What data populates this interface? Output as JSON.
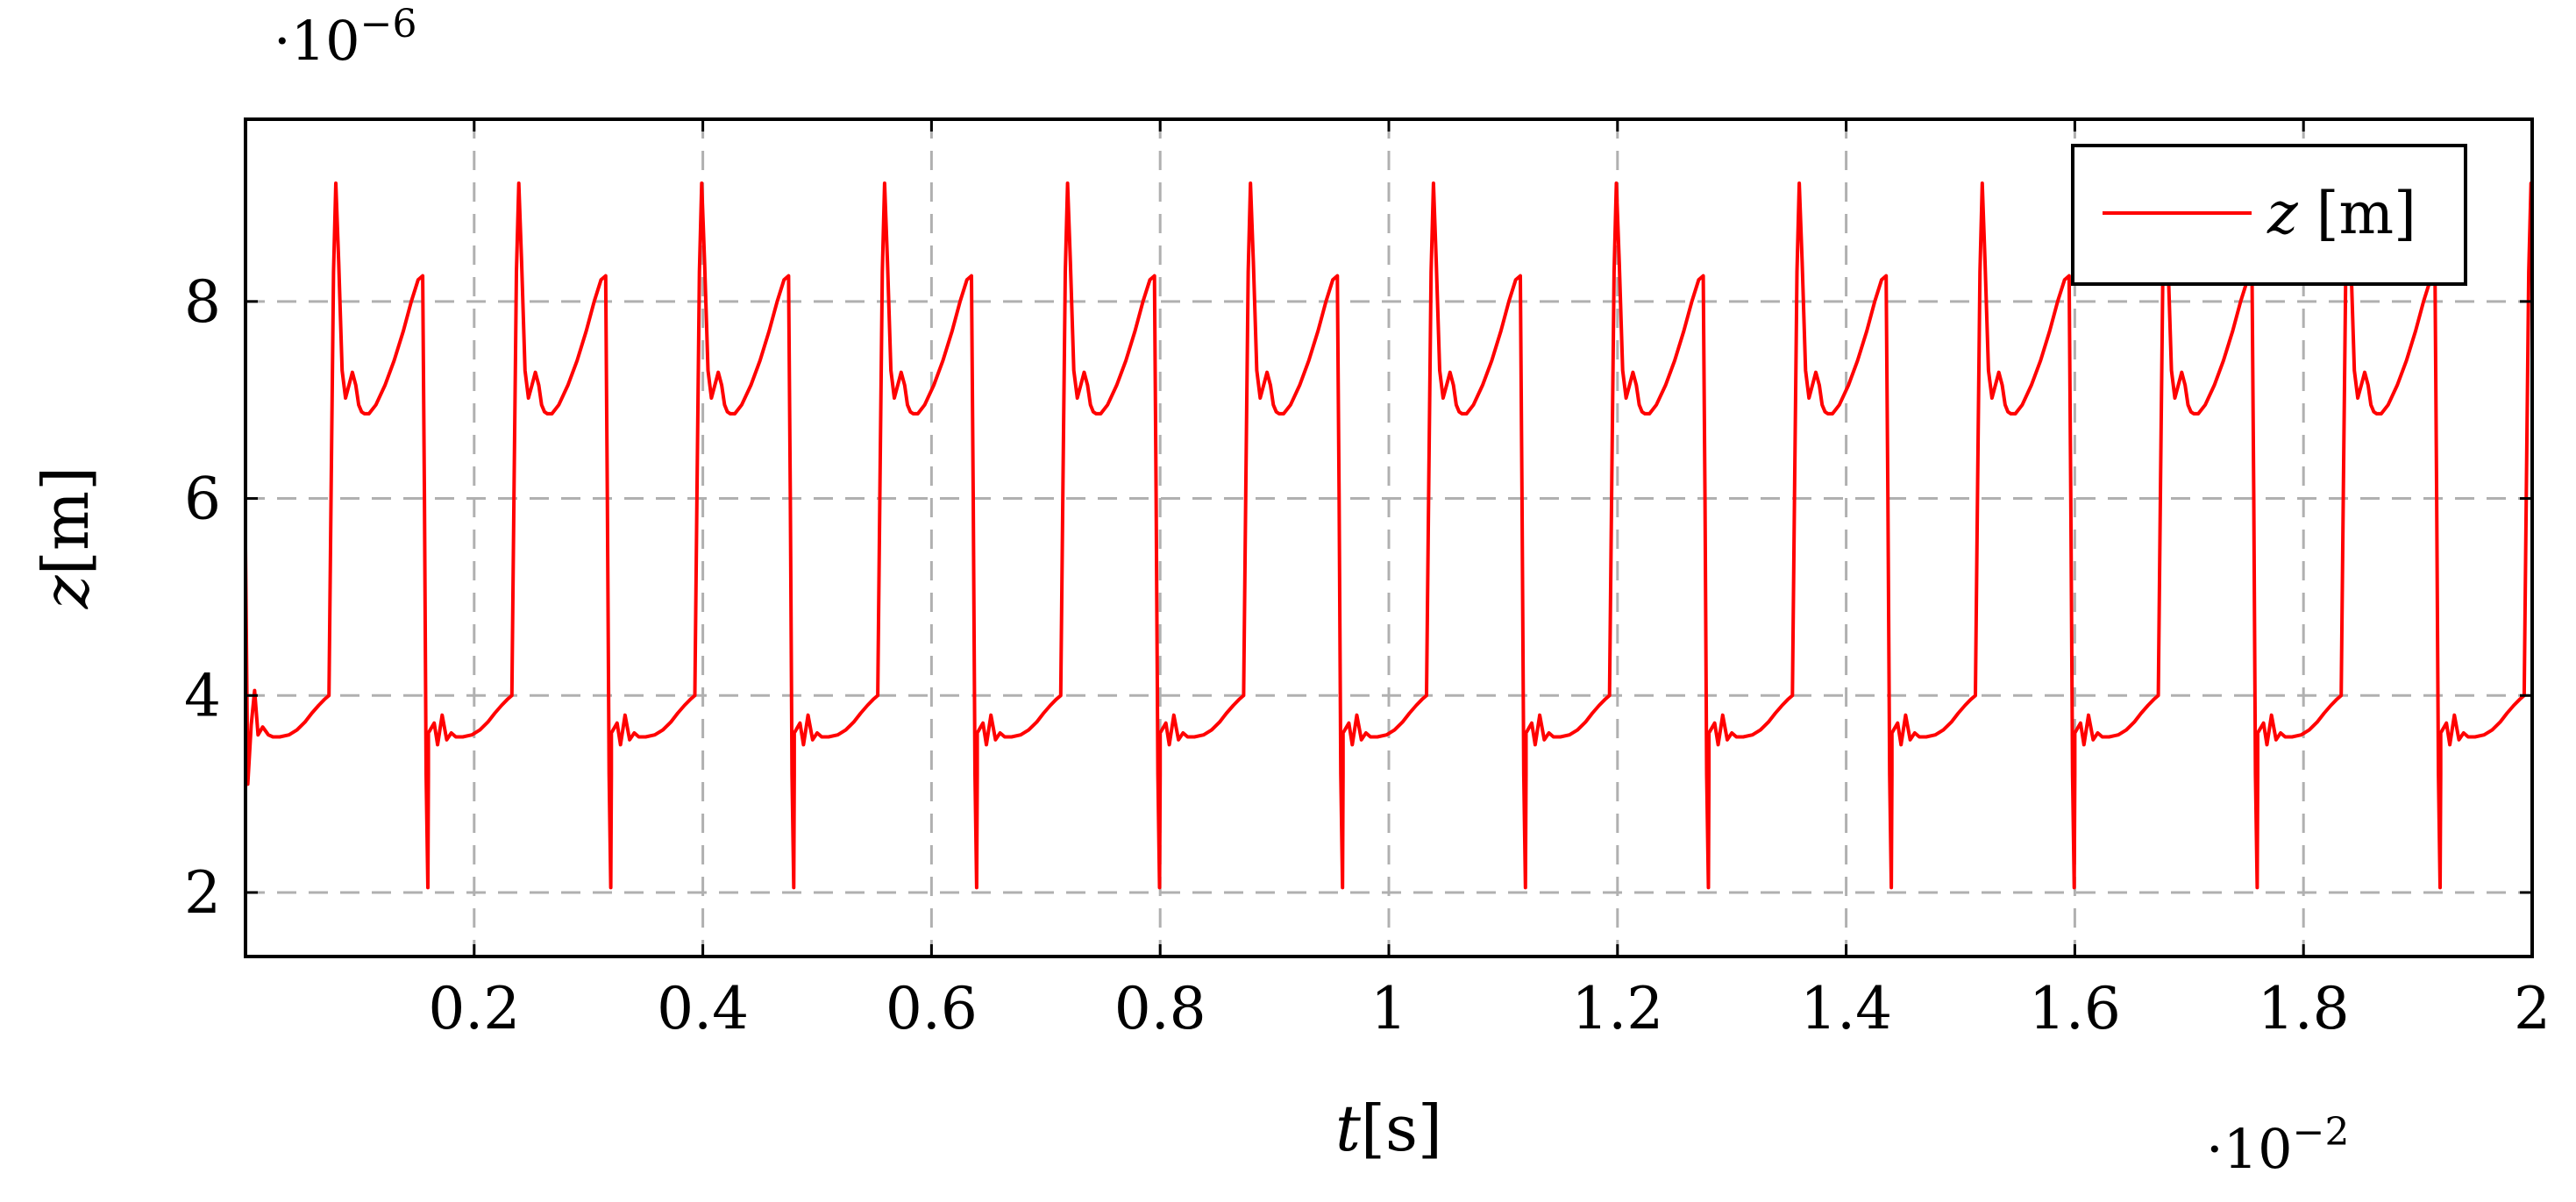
{
  "chart_data": {
    "type": "line",
    "title": "",
    "xlabel": {
      "var": "t",
      "unit": "[s]"
    },
    "ylabel": {
      "var": "z",
      "unit": "[m]"
    },
    "x_scale_label": {
      "base": "·10",
      "exp": "−2"
    },
    "y_scale_label": {
      "base": "·10",
      "exp": "−6"
    },
    "xlim": [
      0,
      2
    ],
    "ylim": [
      1.35,
      9.85
    ],
    "xticks": [
      0.2,
      0.4,
      0.6,
      0.8,
      1,
      1.2,
      1.4,
      1.6,
      1.8,
      2
    ],
    "xtick_labels": [
      "0.2",
      "0.4",
      "0.6",
      "0.8",
      "1",
      "1.2",
      "1.4",
      "1.6",
      "1.8",
      "2"
    ],
    "yticks": [
      2,
      4,
      6,
      8
    ],
    "ytick_labels": [
      "2",
      "4",
      "6",
      "8"
    ],
    "grid": true,
    "legend_position": "top-right",
    "colors": {
      "series": "#ff0000",
      "grid": "#b0b0b0",
      "axes": "#000000"
    },
    "period": 0.16,
    "series": [
      {
        "name": "z[m]",
        "color": "#ff0000",
        "initial_transient": [
          [
            0.0,
            5.5
          ],
          [
            0.002,
            3.1
          ],
          [
            0.005,
            3.7
          ],
          [
            0.008,
            4.05
          ],
          [
            0.011,
            3.6
          ],
          [
            0.015,
            3.68
          ],
          [
            0.02,
            3.6
          ]
        ],
        "x": [
          0.0,
          0.005,
          0.008,
          0.012,
          0.016,
          0.02,
          0.024,
          0.03,
          0.038,
          0.045,
          0.052,
          0.058,
          0.064,
          0.069,
          0.073,
          0.075,
          0.077,
          0.079,
          0.0815,
          0.0845,
          0.0875,
          0.0905,
          0.0935,
          0.0965,
          0.099,
          0.1015,
          0.104,
          0.108,
          0.114,
          0.122,
          0.13,
          0.138,
          0.145,
          0.151,
          0.155,
          0.1565,
          0.158,
          0.1595,
          0.16
        ],
        "y": [
          3.62,
          3.72,
          3.5,
          3.8,
          3.55,
          3.62,
          3.58,
          3.58,
          3.6,
          3.65,
          3.73,
          3.82,
          3.9,
          3.96,
          4.0,
          6.2,
          8.3,
          9.2,
          8.4,
          7.3,
          7.02,
          7.15,
          7.28,
          7.15,
          6.95,
          6.88,
          6.86,
          6.86,
          6.95,
          7.15,
          7.4,
          7.7,
          8.0,
          8.22,
          8.26,
          6.0,
          3.2,
          2.05,
          3.2
        ]
      }
    ]
  }
}
